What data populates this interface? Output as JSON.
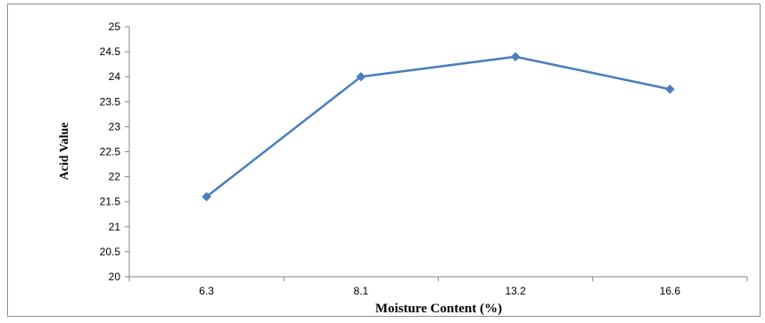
{
  "chart_data": {
    "type": "line",
    "categories": [
      "6.3",
      "8.1",
      "13.2",
      "16.6"
    ],
    "series": [
      {
        "values": [
          21.6,
          24.0,
          24.4,
          23.75
        ]
      }
    ],
    "xlabel": "Moisture Content (%)",
    "ylabel": "Acid Value",
    "ylim": [
      20,
      25
    ],
    "yticks": [
      "20",
      "20.5",
      "21",
      "21.5",
      "22",
      "22.5",
      "23",
      "23.5",
      "24",
      "24.5",
      "25"
    ],
    "grid": false,
    "legend": "none",
    "line_color": "#4a7ebb",
    "marker": "diamond"
  }
}
